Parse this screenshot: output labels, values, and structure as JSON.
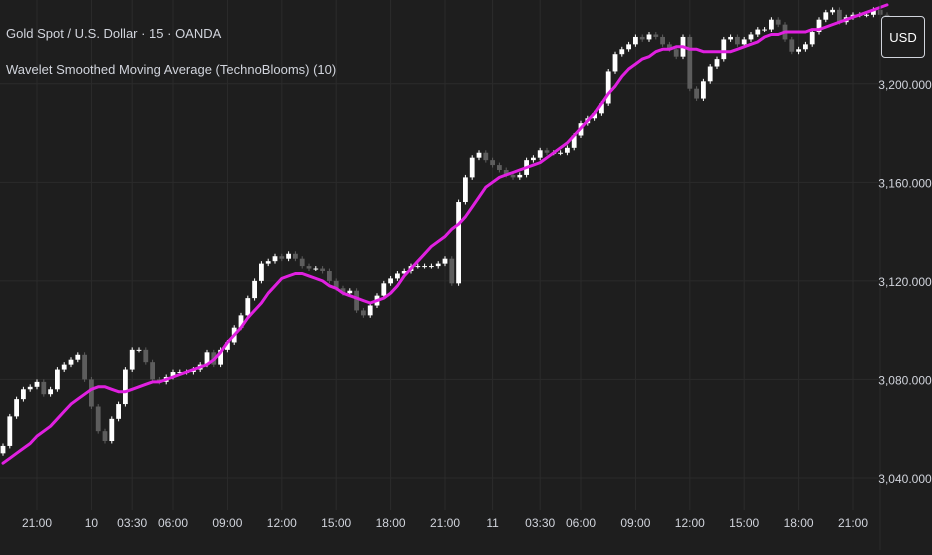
{
  "header": {
    "symbol_title": "Gold Spot / U.S. Dollar · 15 · OANDA",
    "indicator_title": "Wavelet Smoothed Moving Average (TechnoBlooms) (10)",
    "currency_button": "USD"
  },
  "colors": {
    "background": "#1e1e1e",
    "grid": "#2b2b2b",
    "candle_up": "#ffffff",
    "candle_down": "#5d5d5d",
    "moving_average": "#e020e0",
    "text": "#d1d4dc"
  },
  "chart_data": {
    "type": "candlestick",
    "title": "Gold Spot / U.S. Dollar · 15 · OANDA",
    "ylim": [
      3027,
      3234
    ],
    "y_ticks": [
      {
        "value": 3040,
        "label": "3,040.000"
      },
      {
        "value": 3080,
        "label": "3,080.000"
      },
      {
        "value": 3120,
        "label": "3,120.000"
      },
      {
        "value": 3160,
        "label": "3,160.000"
      },
      {
        "value": 3200,
        "label": "3,200.000"
      }
    ],
    "x_ticks": [
      {
        "index": 5,
        "label": "21:00"
      },
      {
        "index": 13,
        "label": "10"
      },
      {
        "index": 19,
        "label": "03:30"
      },
      {
        "index": 25,
        "label": "06:00"
      },
      {
        "index": 33,
        "label": "09:00"
      },
      {
        "index": 41,
        "label": "12:00"
      },
      {
        "index": 49,
        "label": "15:00"
      },
      {
        "index": 57,
        "label": "18:00"
      },
      {
        "index": 65,
        "label": "21:00"
      },
      {
        "index": 72,
        "label": "11"
      },
      {
        "index": 79,
        "label": "03:30"
      },
      {
        "index": 85,
        "label": "06:00"
      },
      {
        "index": 93,
        "label": "09:00"
      },
      {
        "index": 101,
        "label": "12:00"
      },
      {
        "index": 109,
        "label": "15:00"
      },
      {
        "index": 117,
        "label": "18:00"
      },
      {
        "index": 125,
        "label": "21:00"
      }
    ],
    "close": [
      3053,
      3065,
      3072,
      3076,
      3077,
      3079,
      3074,
      3076,
      3084,
      3086,
      3088,
      3090,
      3080,
      3069,
      3059,
      3055,
      3064,
      3070,
      3084,
      3092,
      3092,
      3087,
      3080,
      3079,
      3081,
      3083,
      3083,
      3083,
      3084,
      3086,
      3091,
      3086,
      3092,
      3095,
      3101,
      3106,
      3113,
      3120,
      3127,
      3128,
      3130,
      3129,
      3131,
      3129,
      3126,
      3125,
      3125,
      3124,
      3120,
      3117,
      3115,
      3116,
      3108,
      3106,
      3110,
      3114,
      3119,
      3121,
      3123,
      3124,
      3126,
      3126,
      3126,
      3126,
      3127,
      3129,
      3119,
      3152,
      3162,
      3170,
      3172,
      3169,
      3167,
      3165,
      3163,
      3162,
      3163,
      3169,
      3170,
      3173,
      3172,
      3172,
      3172,
      3174,
      3179,
      3184,
      3186,
      3188,
      3192,
      3205,
      3212,
      3214,
      3216,
      3219,
      3218,
      3220,
      3219,
      3216,
      3214,
      3211,
      3219,
      3198,
      3194,
      3201,
      3207,
      3210,
      3218,
      3219,
      3216,
      3218,
      3220,
      3222,
      3222,
      3226,
      3224,
      3218,
      3213,
      3214,
      3216,
      3221,
      3226,
      3229,
      3230,
      3225,
      3227,
      3228,
      3228,
      3228,
      3230,
      3228,
      3225
    ],
    "ma": [
      3046,
      3048,
      3050,
      3052,
      3054,
      3057,
      3059,
      3061,
      3064,
      3067,
      3070,
      3072,
      3074,
      3076,
      3077,
      3077,
      3076,
      3075,
      3075,
      3076,
      3077,
      3078,
      3079,
      3079,
      3080,
      3081,
      3082,
      3083,
      3084,
      3085,
      3086,
      3088,
      3091,
      3095,
      3098,
      3101,
      3105,
      3108,
      3111,
      3115,
      3118,
      3121,
      3122,
      3123,
      3123,
      3122,
      3121,
      3120,
      3118,
      3117,
      3115,
      3114,
      3113,
      3112,
      3111,
      3112,
      3113,
      3115,
      3118,
      3122,
      3125,
      3128,
      3131,
      3134,
      3136,
      3138,
      3141,
      3143,
      3146,
      3150,
      3154,
      3158,
      3160,
      3162,
      3163,
      3164,
      3165,
      3166,
      3167,
      3168,
      3170,
      3172,
      3174,
      3176,
      3179,
      3182,
      3185,
      3188,
      3192,
      3196,
      3199,
      3203,
      3206,
      3208,
      3210,
      3211,
      3213,
      3214,
      3214,
      3215,
      3215,
      3214,
      3214,
      3213,
      3213,
      3213,
      3213,
      3213,
      3214,
      3215,
      3216,
      3217,
      3219,
      3220,
      3220,
      3221,
      3221,
      3221,
      3221,
      3222,
      3222,
      3223,
      3224,
      3225,
      3226,
      3227,
      3228,
      3229,
      3230,
      3231,
      3232
    ]
  }
}
